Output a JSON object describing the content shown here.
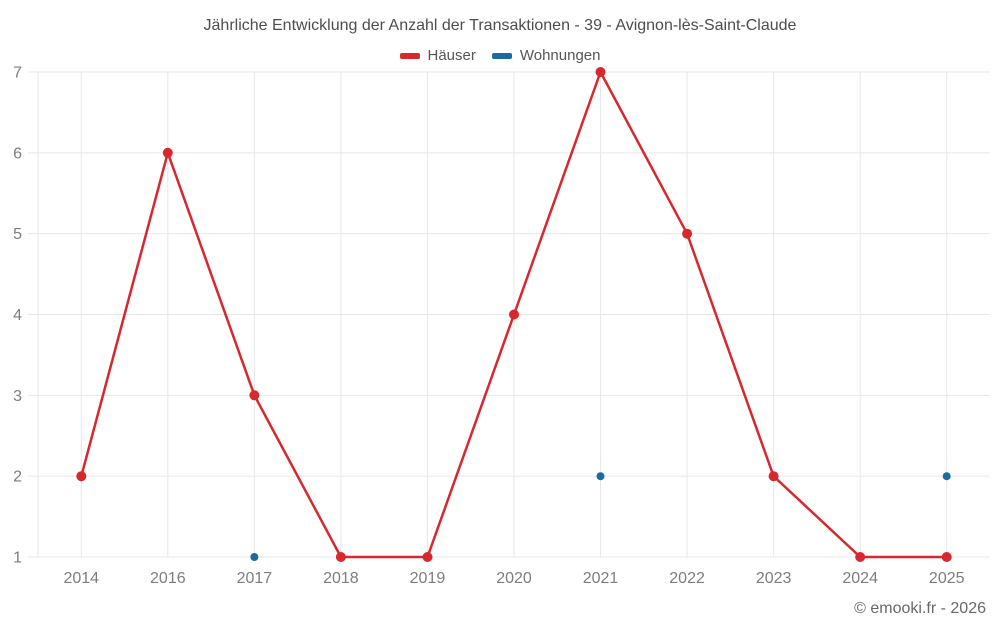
{
  "page": {
    "watermark": "© emooki.fr - 2026"
  },
  "chart_data": {
    "type": "line",
    "title": "Jährliche Entwicklung der Anzahl der Transaktionen - 39 - Avignon-lès-Saint-Claude",
    "categories": [
      "2014",
      "2016",
      "2017",
      "2018",
      "2019",
      "2020",
      "2021",
      "2022",
      "2023",
      "2024",
      "2025"
    ],
    "series": [
      {
        "name": "Häuser",
        "color": "#d7282d",
        "style": "line+points",
        "values": [
          2,
          6,
          3,
          1,
          1,
          4,
          7,
          5,
          2,
          1,
          1
        ]
      },
      {
        "name": "Wohnungen",
        "color": "#1a6ba4",
        "style": "points",
        "values": [
          null,
          null,
          1,
          null,
          null,
          null,
          2,
          null,
          null,
          null,
          2
        ]
      }
    ],
    "ylim": [
      1,
      7
    ],
    "yticks": [
      1,
      2,
      3,
      4,
      5,
      6,
      7
    ],
    "grid": true,
    "legend_position": "top",
    "grid_color": "#e7e7e7"
  }
}
